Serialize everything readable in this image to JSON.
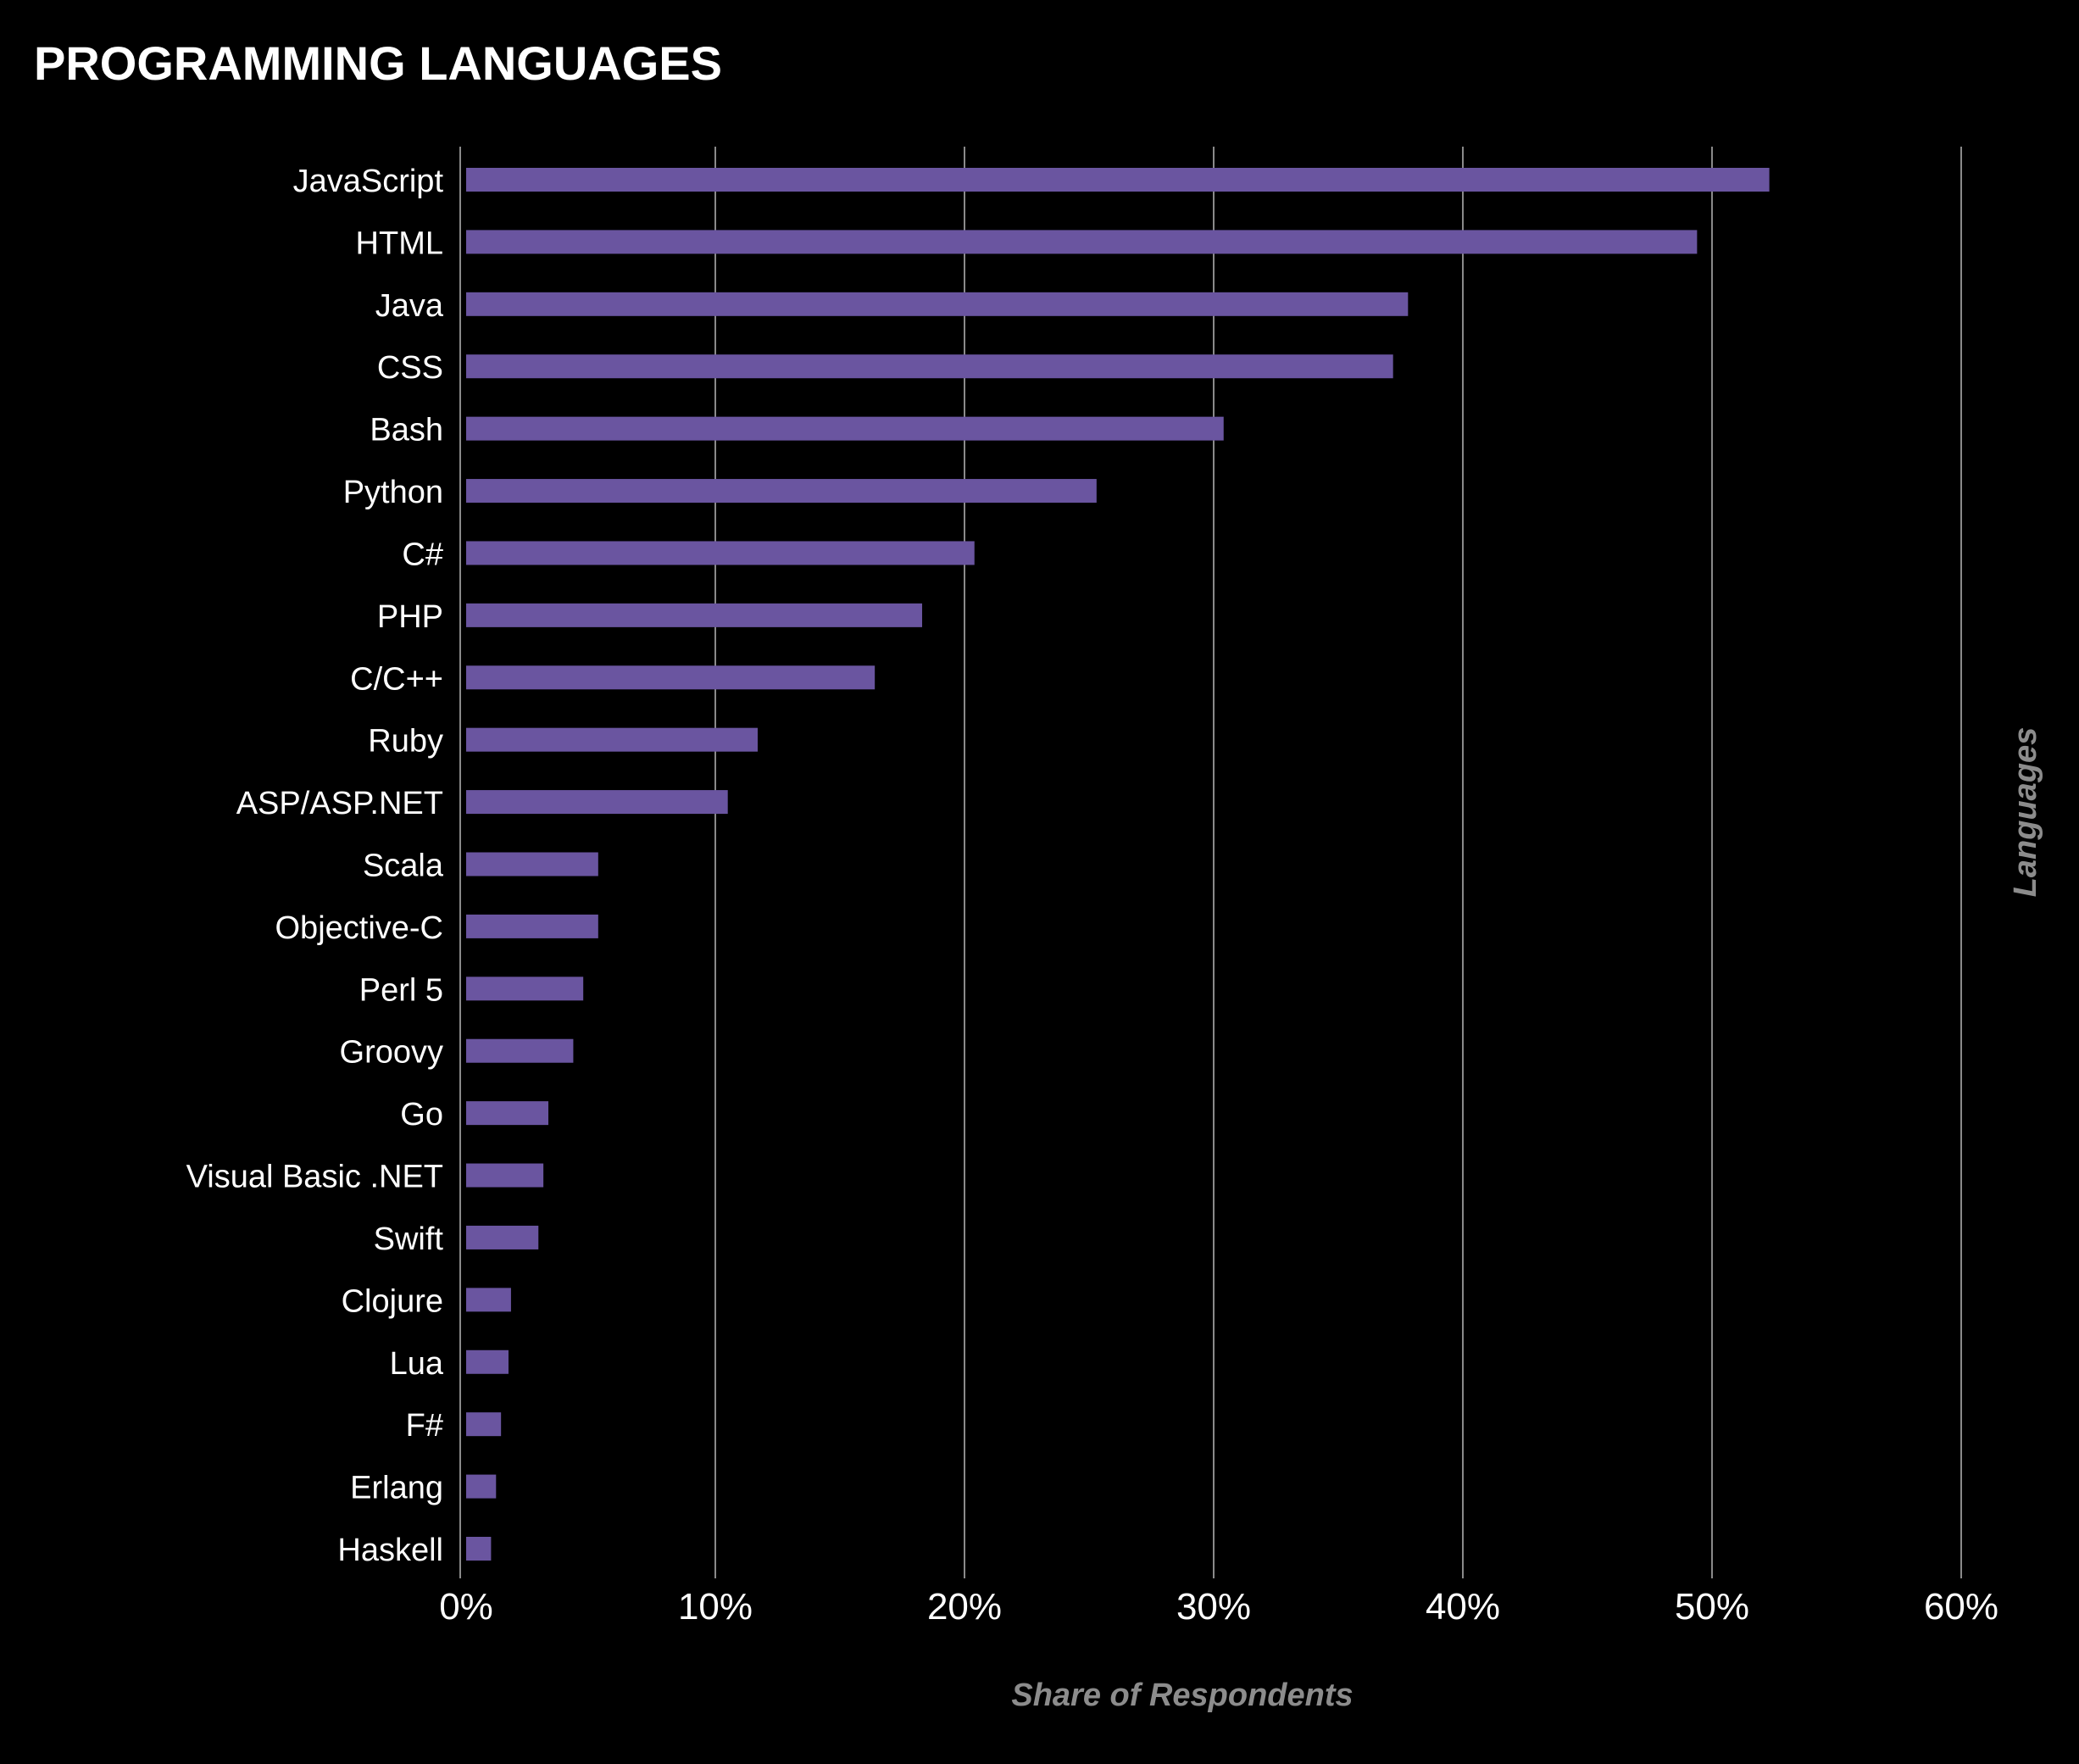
{
  "chart_data": {
    "type": "bar",
    "orientation": "horizontal",
    "title": "PROGRAMMING LANGUAGES",
    "xlabel": "Share of Respondents",
    "ylabel": "Languages",
    "categories": [
      "JavaScript",
      "HTML",
      "Java",
      "CSS",
      "Bash",
      "Python",
      "C#",
      "PHP",
      "C/C++",
      "Ruby",
      "ASP/ASP.NET",
      "Scala",
      "Objective-C",
      "Perl 5",
      "Groovy",
      "Go",
      "Visual Basic .NET",
      "Swift",
      "Clojure",
      "Lua",
      "F#",
      "Erlang",
      "Haskell"
    ],
    "values": [
      52.3,
      49.4,
      37.8,
      37.2,
      30.4,
      25.3,
      20.4,
      18.3,
      16.4,
      11.7,
      10.5,
      5.3,
      5.3,
      4.7,
      4.3,
      3.3,
      3.1,
      2.9,
      1.8,
      1.7,
      1.4,
      1.2,
      1.0
    ],
    "xlim": [
      0,
      60
    ],
    "xticks": [
      0,
      10,
      20,
      30,
      40,
      50,
      60
    ],
    "xtick_labels": [
      "0%",
      "10%",
      "20%",
      "30%",
      "40%",
      "50%",
      "60%"
    ],
    "grid": true,
    "legend": "none",
    "colors": {
      "background": "#000000",
      "bar": "#6a55a0",
      "grid": "#8a8a8a",
      "text": "#ffffff",
      "axis_title": "#8c8c8c"
    }
  }
}
